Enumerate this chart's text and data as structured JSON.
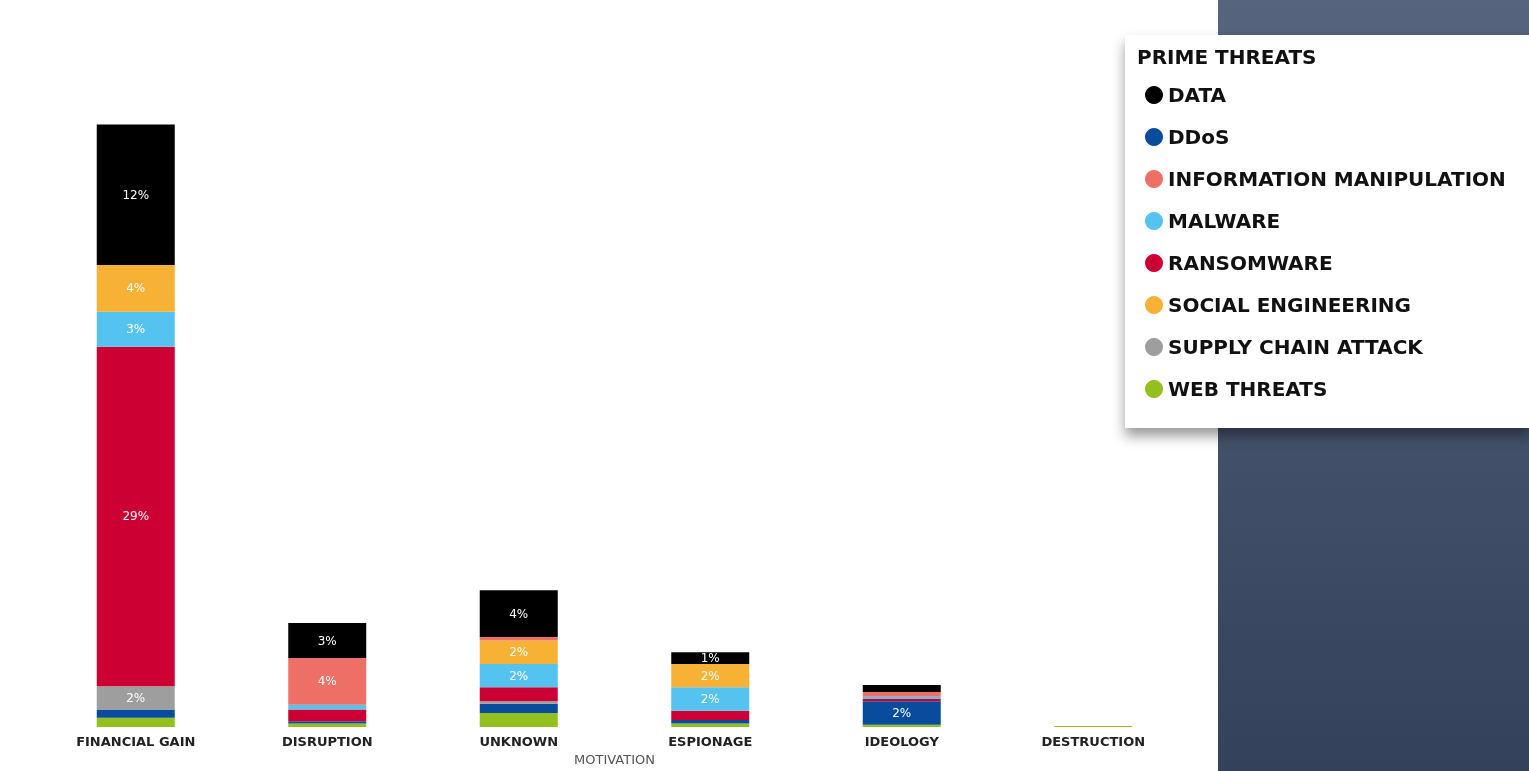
{
  "chart_data": {
    "type": "bar",
    "stacked": true,
    "xlabel": "MOTIVATION",
    "legend_title": "PRIME THREATS",
    "legend": "top right",
    "grid": false,
    "tick_labels": "x",
    "categories": [
      "FINANCIAL GAIN",
      "DISRUPTION",
      "UNKNOWN",
      "ESPIONAGE",
      "IDEOLOGY",
      "DESTRUCTION"
    ],
    "series": [
      {
        "name": "WEB THREATS",
        "color": "#93c01f",
        "values": [
          0.8,
          0.3,
          1.2,
          0.3,
          0.2,
          0.1
        ],
        "value_labels": [
          null,
          null,
          null,
          null,
          null,
          null
        ]
      },
      {
        "name": "DDoS",
        "color": "#0a4c9c",
        "values": [
          0.7,
          0.2,
          0.8,
          0.3,
          2,
          null
        ],
        "value_labels": [
          null,
          null,
          null,
          null,
          "2%",
          null
        ]
      },
      {
        "name": "SUPPLY CHAIN ATTACK",
        "color": "#9e9e9e",
        "values": [
          2,
          null,
          0.2,
          null,
          null,
          null
        ],
        "value_labels": [
          "2%",
          null,
          null,
          null,
          null,
          null
        ]
      },
      {
        "name": "RANSOMWARE",
        "color": "#cc0033",
        "values": [
          29,
          1,
          1.2,
          0.8,
          0.2,
          null
        ],
        "value_labels": [
          "29%",
          null,
          null,
          null,
          null,
          null
        ]
      },
      {
        "name": "MALWARE",
        "color": "#55c3ef",
        "values": [
          3,
          0.4,
          2,
          2,
          0.2,
          null
        ],
        "value_labels": [
          "3%",
          null,
          "2%",
          "2%",
          null,
          null
        ]
      },
      {
        "name": "SOCIAL ENGINEERING",
        "color": "#f7b135",
        "values": [
          4,
          null,
          2,
          2,
          null,
          null
        ],
        "value_labels": [
          "4%",
          null,
          "2%",
          "2%",
          null,
          null
        ]
      },
      {
        "name": "INFORMATION MANIPULATION",
        "color": "#ee6f66",
        "values": [
          null,
          4,
          0.3,
          null,
          0.4,
          null
        ],
        "value_labels": [
          null,
          "4%",
          null,
          null,
          null,
          null
        ]
      },
      {
        "name": "DATA",
        "color": "#000000",
        "values": [
          12,
          3,
          4,
          1,
          0.6,
          null
        ],
        "value_labels": [
          "12%",
          "3%",
          "4%",
          "1%",
          null,
          null
        ]
      }
    ]
  }
}
